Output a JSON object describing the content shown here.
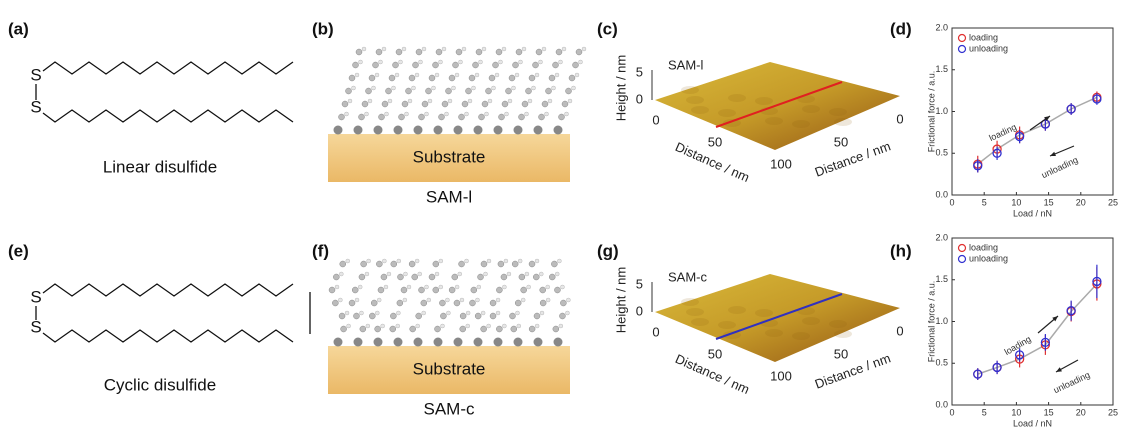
{
  "panels": [
    "(a)",
    "(b)",
    "(c)",
    "(d)",
    "(e)",
    "(f)",
    "(g)",
    "(h)"
  ],
  "molecules": [
    {
      "atoms": [
        "S",
        "S"
      ],
      "label": "Linear disulfide"
    },
    {
      "atoms": [
        "S",
        "S"
      ],
      "label": "Cyclic disulfide"
    }
  ],
  "sams": [
    {
      "substrate": "Substrate",
      "label": "SAM-l"
    },
    {
      "substrate": "Substrate",
      "label": "SAM-c"
    }
  ],
  "afm": [
    {
      "title": "SAM-l",
      "line_color": "#e02020",
      "z_label": "Height / nm",
      "z_ticks": [
        0,
        5
      ],
      "x_label": "Distance / nm",
      "x_ticks": [
        0,
        50,
        100
      ],
      "y_label": "Distance / nm",
      "y_ticks": [
        50,
        0
      ]
    },
    {
      "title": "SAM-c",
      "line_color": "#3030c0",
      "z_label": "Height / nm",
      "z_ticks": [
        0,
        5
      ],
      "x_label": "Distance / nm",
      "x_ticks": [
        0,
        50,
        100
      ],
      "y_label": "Distance / nm",
      "y_ticks": [
        50,
        0
      ]
    }
  ],
  "chart_data": [
    {
      "type": "scatter",
      "x_label": "Load / nN",
      "y_label": "Frictional force / a.u.",
      "x": [
        4,
        7,
        10.5,
        14.5,
        18.5,
        22.5
      ],
      "series": [
        {
          "name": "loading",
          "color": "#e03030",
          "values": [
            0.37,
            0.55,
            0.72,
            0.85,
            1.03,
            1.17
          ],
          "errors": [
            0.1,
            0.1,
            0.1,
            0.08,
            0.07,
            0.07
          ]
        },
        {
          "name": "unloading",
          "color": "#3030d0",
          "values": [
            0.35,
            0.5,
            0.7,
            0.85,
            1.03,
            1.15
          ],
          "errors": [
            0.08,
            0.08,
            0.08,
            0.08,
            0.07,
            0.07
          ]
        }
      ],
      "xlim": [
        0,
        25
      ],
      "xticks": [
        0,
        5,
        10,
        15,
        20,
        25
      ],
      "ylim": [
        0,
        2
      ],
      "yticks": [
        {
          "value": 0,
          "label": "0.0"
        },
        {
          "value": 0.5,
          "label": "0.5"
        },
        {
          "value": 1,
          "label": "1.0"
        },
        {
          "value": 1.5,
          "label": "1.5"
        },
        {
          "value": 2,
          "label": "2.0"
        }
      ],
      "annotations": [
        "loading",
        "unloading"
      ]
    },
    {
      "type": "scatter",
      "x_label": "Load / nN",
      "y_label": "Frictional force / a.u.",
      "x": [
        4,
        7,
        10.5,
        14.5,
        18.5,
        22.5
      ],
      "series": [
        {
          "name": "loading",
          "color": "#e03030",
          "values": [
            0.37,
            0.45,
            0.55,
            0.72,
            1.12,
            1.45
          ],
          "errors": [
            0.07,
            0.08,
            0.1,
            0.12,
            0.12,
            0.2
          ]
        },
        {
          "name": "unloading",
          "color": "#3030d0",
          "values": [
            0.37,
            0.45,
            0.6,
            0.75,
            1.13,
            1.48
          ],
          "errors": [
            0.07,
            0.08,
            0.08,
            0.1,
            0.12,
            0.2
          ]
        }
      ],
      "xlim": [
        0,
        25
      ],
      "xticks": [
        0,
        5,
        10,
        15,
        20,
        25
      ],
      "ylim": [
        0,
        2
      ],
      "yticks": [
        {
          "value": 0,
          "label": "0.0"
        },
        {
          "value": 0.5,
          "label": "0.5"
        },
        {
          "value": 1,
          "label": "1.0"
        },
        {
          "value": 1.5,
          "label": "1.5"
        },
        {
          "value": 2,
          "label": "2.0"
        }
      ],
      "annotations": [
        "loading",
        "unloading"
      ]
    }
  ]
}
